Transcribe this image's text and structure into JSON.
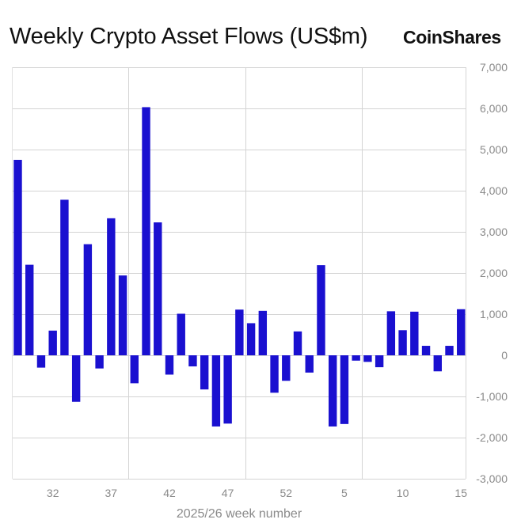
{
  "header": {
    "title": "Weekly Crypto Asset Flows (US$m)",
    "brand": "CoinShares"
  },
  "chart_data": {
    "type": "bar",
    "title": "Weekly Crypto Asset Flows (US$m)",
    "xlabel": "2025/26 week number",
    "ylabel": "",
    "ylim": [
      -3000,
      7000
    ],
    "yticks": [
      -3000,
      -2000,
      -1000,
      0,
      1000,
      2000,
      3000,
      4000,
      5000,
      6000,
      7000
    ],
    "ytick_labels": [
      "-3,000",
      "-2,000",
      "-1,000",
      "0",
      "1,000",
      "2,000",
      "3,000",
      "4,000",
      "5,000",
      "6,000",
      "7,000"
    ],
    "xtick_labels": [
      "32",
      "37",
      "42",
      "47",
      "52",
      "5",
      "10",
      "15"
    ],
    "bar_color": "#1a10d0",
    "grid": true,
    "values": [
      4750,
      2200,
      -300,
      600,
      3780,
      -1130,
      2700,
      -320,
      3330,
      1940,
      -680,
      6030,
      3230,
      -470,
      1010,
      -270,
      -830,
      -1730,
      -1660,
      1110,
      780,
      1080,
      -910,
      -620,
      580,
      -420,
      2190,
      -1730,
      -1670,
      -130,
      -160,
      -290,
      1070,
      610,
      1060,
      230,
      -390,
      230,
      1120
    ]
  }
}
